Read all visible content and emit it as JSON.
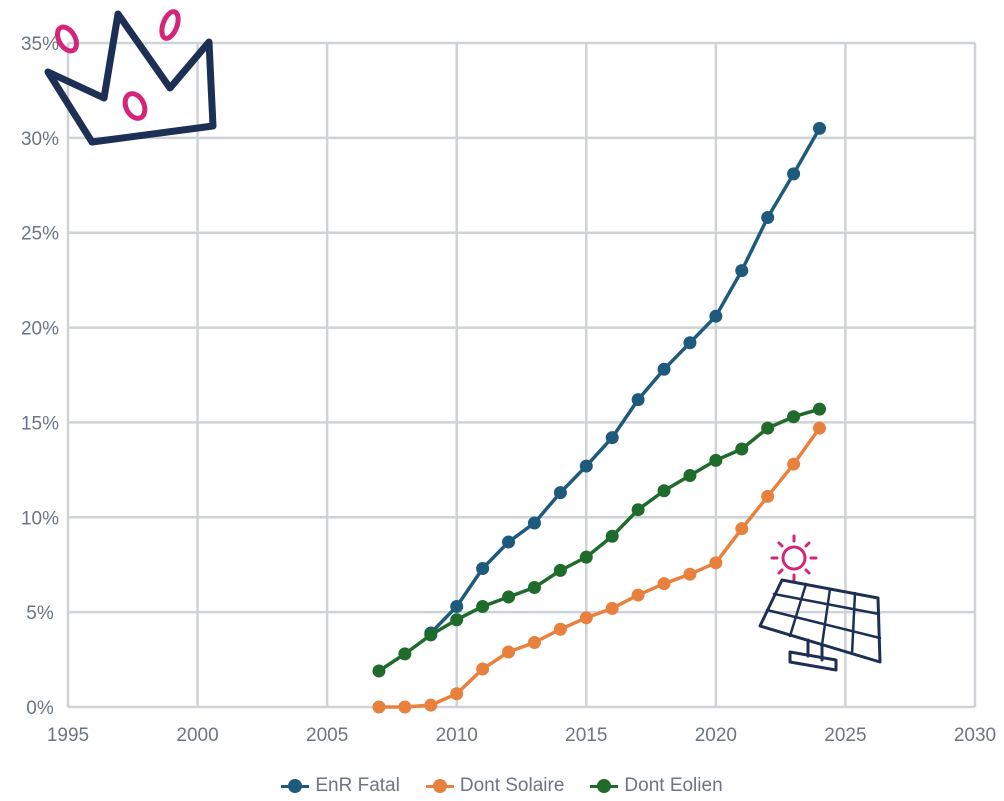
{
  "chart_data": {
    "type": "line",
    "xlim": [
      1995,
      2030
    ],
    "ylim": [
      0,
      0.35
    ],
    "x_ticks": [
      "1995",
      "2000",
      "2005",
      "2010",
      "2015",
      "2020",
      "2025",
      "2030"
    ],
    "y_ticks": [
      "0%",
      "5%",
      "10%",
      "15%",
      "20%",
      "25%",
      "30%",
      "35%"
    ],
    "grid": true,
    "legend_position": "bottom",
    "x": [
      2007,
      2008,
      2009,
      2010,
      2011,
      2012,
      2013,
      2014,
      2015,
      2016,
      2017,
      2018,
      2019,
      2020,
      2021,
      2022,
      2023,
      2024
    ],
    "series": [
      {
        "name": "EnR Fatal",
        "color": "#1d5a7c",
        "x": [
          2009,
          2010,
          2011,
          2012,
          2013,
          2014,
          2015,
          2016,
          2017,
          2018,
          2019,
          2020,
          2021,
          2022,
          2023,
          2024
        ],
        "values": [
          0.039,
          0.053,
          0.073,
          0.087,
          0.097,
          0.113,
          0.127,
          0.142,
          0.162,
          0.178,
          0.192,
          0.206,
          0.23,
          0.258,
          0.281,
          0.305
        ]
      },
      {
        "name": "Dont Solaire",
        "color": "#e8803e",
        "x": [
          2007,
          2008,
          2009,
          2010,
          2011,
          2012,
          2013,
          2014,
          2015,
          2016,
          2017,
          2018,
          2019,
          2020,
          2021,
          2022,
          2023,
          2024
        ],
        "values": [
          0.0,
          0.0,
          0.001,
          0.007,
          0.02,
          0.029,
          0.034,
          0.041,
          0.047,
          0.052,
          0.059,
          0.065,
          0.07,
          0.076,
          0.094,
          0.111,
          0.128,
          0.147
        ]
      },
      {
        "name": "Dont Eolien",
        "color": "#1f6b2c",
        "x": [
          2007,
          2008,
          2009,
          2010,
          2011,
          2012,
          2013,
          2014,
          2015,
          2016,
          2017,
          2018,
          2019,
          2020,
          2021,
          2022,
          2023,
          2024
        ],
        "values": [
          0.019,
          0.028,
          0.038,
          0.046,
          0.053,
          0.058,
          0.063,
          0.072,
          0.079,
          0.09,
          0.104,
          0.114,
          0.122,
          0.13,
          0.136,
          0.147,
          0.153,
          0.157
        ]
      }
    ]
  },
  "decorations": {
    "crown_icon": "crown-doodle",
    "solar_icon": "solar-panel-doodle",
    "accent_color": "#d3267a",
    "ink_color": "#1e2f55"
  }
}
